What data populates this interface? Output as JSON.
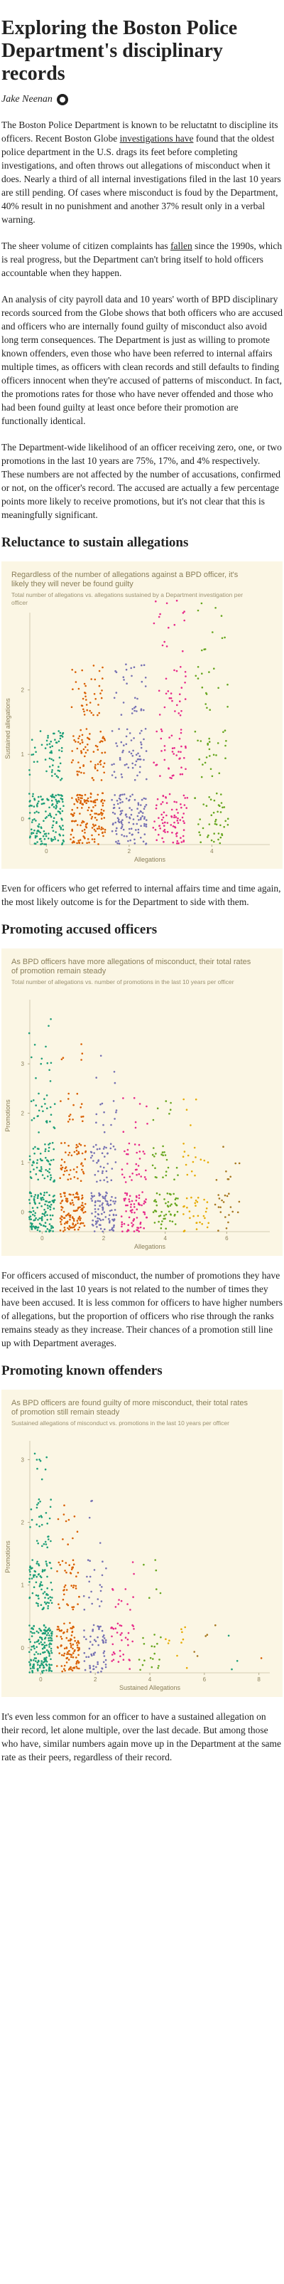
{
  "article": {
    "title": "Exploring the Boston Police Department's disciplinary records",
    "author": "Jake Neenan",
    "intro": [
      {
        "parts": [
          {
            "t": "The Boston Police Department is known to be reluctatnt to discipline its officers. Recent Boston Globe "
          },
          {
            "t": "investigations have",
            "u": true
          },
          {
            "t": " found that the oldest police department in the U.S. drags its feet before completing investigations, and often throws out allegations of misconduct when it does. Nearly a third of all internal investigations filed in the last 10 years are still pending. Of cases where misconduct is foud by the Department, 40% result in no punishment and another 37% result only in a verbal warning."
          }
        ]
      },
      {
        "parts": [
          {
            "t": "The sheer volume of citizen complaints has "
          },
          {
            "t": "fallen",
            "u": true
          },
          {
            "t": " since the 1990s, which is real progress, but the Department can't bring itself to hold officers accountable when they happen."
          }
        ]
      },
      {
        "parts": [
          {
            "t": "An analysis of city payroll data and 10 years' worth of BPD disciplinary records sourced from the Globe shows that both officers who are accused and officers who are internally found guilty of misconduct also avoid long term consequences. The Department is just as willing to promote known offenders, even those who have been referred to internal affairs multiple times, as officers with clean records and still defaults to finding officers innocent when they're accused of patterns of misconduct. In fact, the promotions rates for those who have never offended and those who had been found guilty at least once before their promotion are functionally identical."
          }
        ]
      },
      {
        "parts": [
          {
            "t": "The Department-wide likelihood of an officer receiving zero, one, or two promotions in the last 10 years are 75%, 17%, and 4% respectively. These numbers are not affected by the number of accusations, confirmed or not, on the officer's record. The accused are actually a few percentage points more likely to receive promotions, but it's not clear that this is meaningfully significant."
          }
        ]
      }
    ],
    "section1": {
      "heading": "Reluctance to sustain allegations",
      "after": "Even for officers who get referred to internal affairs time and time again, the most likely outcome is for the Department to side with them."
    },
    "section2": {
      "heading": "Promoting accused officers",
      "after": "For officers accused of misconduct, the number of promotions they have received in the last 10 years is not related to the number of times they have been accused. It is less common for officers to have higher numbers of allegations, but the proportion of officers who rise through the ranks remains steady as they increase. Their chances of a promotion still line up with Department averages."
    },
    "section3": {
      "heading": "Promoting known offenders",
      "after": "It's even less common for an officer to have a sustained allegation on their record, let alone multiple, over the last decade. But among those who have, similar numbers again move up in the Department at the same rate as their peers, regardless of their record."
    }
  },
  "chart_data": [
    {
      "type": "scatter",
      "title": "Regardless of the number of allegations against a BPD officer, it's likely they will never be found guilty",
      "subtitle": "Total number of allegations vs. allegations sustained by a Department investigation per officer",
      "xlabel": "Allegations",
      "ylabel": "Sustained allegations",
      "x_ticks": [
        0,
        2,
        4
      ],
      "y_ticks": [
        0,
        1,
        2
      ],
      "x_range": [
        -0.4,
        5.4
      ],
      "y_range": [
        -0.4,
        3.2
      ],
      "series_colors": [
        "#1b9e77",
        "#d95f02",
        "#7570b3",
        "#e7298a",
        "#66a61e"
      ],
      "clusters": [
        {
          "x": 0,
          "y": 0,
          "count": 150
        },
        {
          "x": 0,
          "y": 1,
          "count": 60
        },
        {
          "x": 1,
          "y": 0,
          "count": 140
        },
        {
          "x": 1,
          "y": 1,
          "count": 70
        },
        {
          "x": 1,
          "y": 2,
          "count": 40
        },
        {
          "x": 2,
          "y": 0,
          "count": 110
        },
        {
          "x": 2,
          "y": 1,
          "count": 55
        },
        {
          "x": 2,
          "y": 2,
          "count": 30
        },
        {
          "x": 3,
          "y": 0,
          "count": 80
        },
        {
          "x": 3,
          "y": 1,
          "count": 40
        },
        {
          "x": 3,
          "y": 2,
          "count": 25
        },
        {
          "x": 3,
          "y": 3,
          "count": 15
        },
        {
          "x": 4,
          "y": 0,
          "count": 45
        },
        {
          "x": 4,
          "y": 1,
          "count": 25
        },
        {
          "x": 4,
          "y": 2,
          "count": 15
        },
        {
          "x": 4,
          "y": 3,
          "count": 10
        }
      ],
      "grid": false
    },
    {
      "type": "scatter",
      "title": "As BPD officers have more allegations of misconduct, their total rates of promotion remain steady",
      "subtitle": "Total number of allegations vs. number of promotions in the last 10 years per officer",
      "xlabel": "Allegations",
      "ylabel": "Promotions",
      "x_ticks": [
        0,
        2,
        4,
        6
      ],
      "y_ticks": [
        0,
        1,
        2,
        3
      ],
      "x_range": [
        -0.4,
        7.4
      ],
      "y_range": [
        -0.4,
        4.3
      ],
      "series_colors": [
        "#1b9e77",
        "#d95f02",
        "#7570b3",
        "#e7298a",
        "#66a61e",
        "#e6ab02",
        "#a6761d"
      ],
      "clusters": [
        {
          "x": 0,
          "y": 0,
          "count": 120
        },
        {
          "x": 0,
          "y": 1,
          "count": 60
        },
        {
          "x": 0,
          "y": 2,
          "count": 25
        },
        {
          "x": 0,
          "y": 3,
          "count": 10
        },
        {
          "x": 0,
          "y": 4,
          "count": 3
        },
        {
          "x": 1,
          "y": 0,
          "count": 110
        },
        {
          "x": 1,
          "y": 1,
          "count": 50
        },
        {
          "x": 1,
          "y": 2,
          "count": 15
        },
        {
          "x": 1,
          "y": 3,
          "count": 5
        },
        {
          "x": 2,
          "y": 0,
          "count": 90
        },
        {
          "x": 2,
          "y": 1,
          "count": 40
        },
        {
          "x": 2,
          "y": 2,
          "count": 12
        },
        {
          "x": 2,
          "y": 3,
          "count": 4
        },
        {
          "x": 3,
          "y": 0,
          "count": 70
        },
        {
          "x": 3,
          "y": 1,
          "count": 30
        },
        {
          "x": 3,
          "y": 2,
          "count": 8
        },
        {
          "x": 4,
          "y": 0,
          "count": 50
        },
        {
          "x": 4,
          "y": 1,
          "count": 22
        },
        {
          "x": 4,
          "y": 2,
          "count": 6
        },
        {
          "x": 5,
          "y": 0,
          "count": 30
        },
        {
          "x": 5,
          "y": 1,
          "count": 14
        },
        {
          "x": 5,
          "y": 2,
          "count": 4
        },
        {
          "x": 6,
          "y": 0,
          "count": 20
        },
        {
          "x": 6,
          "y": 1,
          "count": 8
        }
      ],
      "grid": false
    },
    {
      "type": "scatter",
      "title": "As BPD officers are found guilty of more misconduct, their total rates of promotion still remain steady",
      "subtitle": "Sustained allegations of misconduct vs. promotions in the last 10 years per officer",
      "xlabel": "Sustained Allegations",
      "ylabel": "Promotions",
      "x_ticks": [
        0,
        2,
        4,
        6,
        8
      ],
      "y_ticks": [
        0,
        1,
        2,
        3
      ],
      "x_range": [
        -0.4,
        8.4
      ],
      "y_range": [
        -0.4,
        3.3
      ],
      "series_colors": [
        "#1b9e77",
        "#d95f02",
        "#7570b3",
        "#e7298a",
        "#66a61e",
        "#e6ab02",
        "#a6761d"
      ],
      "clusters": [
        {
          "x": 0,
          "y": 0,
          "count": 160
        },
        {
          "x": 0,
          "y": 1,
          "count": 80
        },
        {
          "x": 0,
          "y": 2,
          "count": 30
        },
        {
          "x": 0,
          "y": 3,
          "count": 8
        },
        {
          "x": 1,
          "y": 0,
          "count": 100
        },
        {
          "x": 1,
          "y": 1,
          "count": 40
        },
        {
          "x": 1,
          "y": 2,
          "count": 10
        },
        {
          "x": 2,
          "y": 0,
          "count": 60
        },
        {
          "x": 2,
          "y": 1,
          "count": 20
        },
        {
          "x": 2,
          "y": 2,
          "count": 4
        },
        {
          "x": 3,
          "y": 0,
          "count": 35
        },
        {
          "x": 3,
          "y": 1,
          "count": 12
        },
        {
          "x": 4,
          "y": 0,
          "count": 18
        },
        {
          "x": 4,
          "y": 1,
          "count": 6
        },
        {
          "x": 5,
          "y": 0,
          "count": 10
        },
        {
          "x": 6,
          "y": 0,
          "count": 5
        },
        {
          "x": 7,
          "y": 0,
          "count": 3
        },
        {
          "x": 8,
          "y": 0,
          "count": 1
        }
      ],
      "grid": false
    }
  ]
}
